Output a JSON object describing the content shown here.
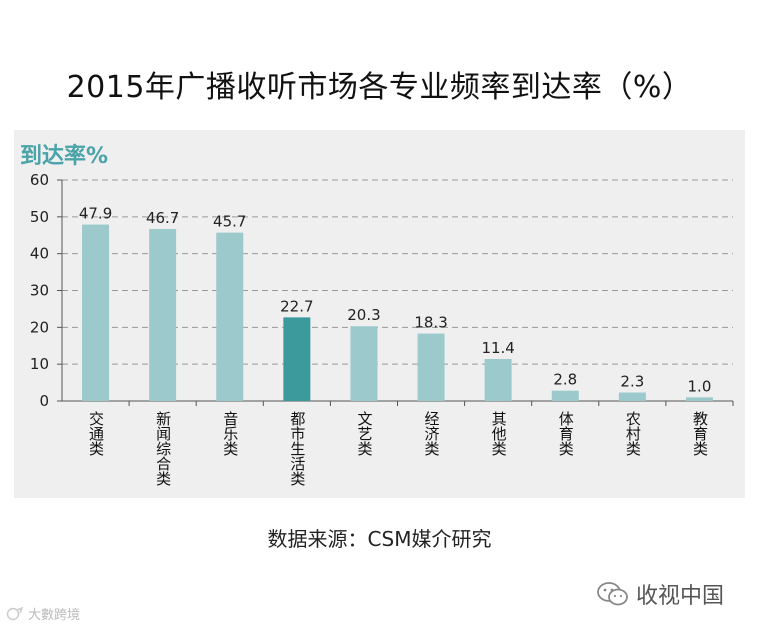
{
  "page": {
    "title": "2015年广播收听市场各专业频率到达率（%）",
    "source": "数据来源：CSM媒介研究",
    "brand": "收视中国",
    "watermark": "大數跨境"
  },
  "colors": {
    "bar": "#9cc9cc",
    "bar_highlight": "#3c9a9c",
    "grid": "#999999",
    "axis": "#555555",
    "panel": "#efefef",
    "ylabel": "#4aa3a8"
  },
  "chart_data": {
    "type": "bar",
    "title": "2015年广播收听市场各专业频率到达率（%）",
    "ylabel": "到达率%",
    "xlabel": "",
    "ylim": [
      0,
      60
    ],
    "yticks": [
      0,
      10,
      20,
      30,
      40,
      50,
      60
    ],
    "grid": true,
    "categories": [
      "交通类",
      "新闻综合类",
      "音乐类",
      "都市生活类",
      "文艺类",
      "经济类",
      "其他类",
      "体育类",
      "农村类",
      "教育类"
    ],
    "values": [
      47.9,
      46.7,
      45.7,
      22.7,
      20.3,
      18.3,
      11.4,
      2.8,
      2.3,
      1.0
    ],
    "value_labels": [
      "47.9",
      "46.7",
      "45.7",
      "22.7",
      "20.3",
      "18.3",
      "11.4",
      "2.8",
      "2.3",
      "1.0"
    ],
    "highlight_index": 3
  }
}
